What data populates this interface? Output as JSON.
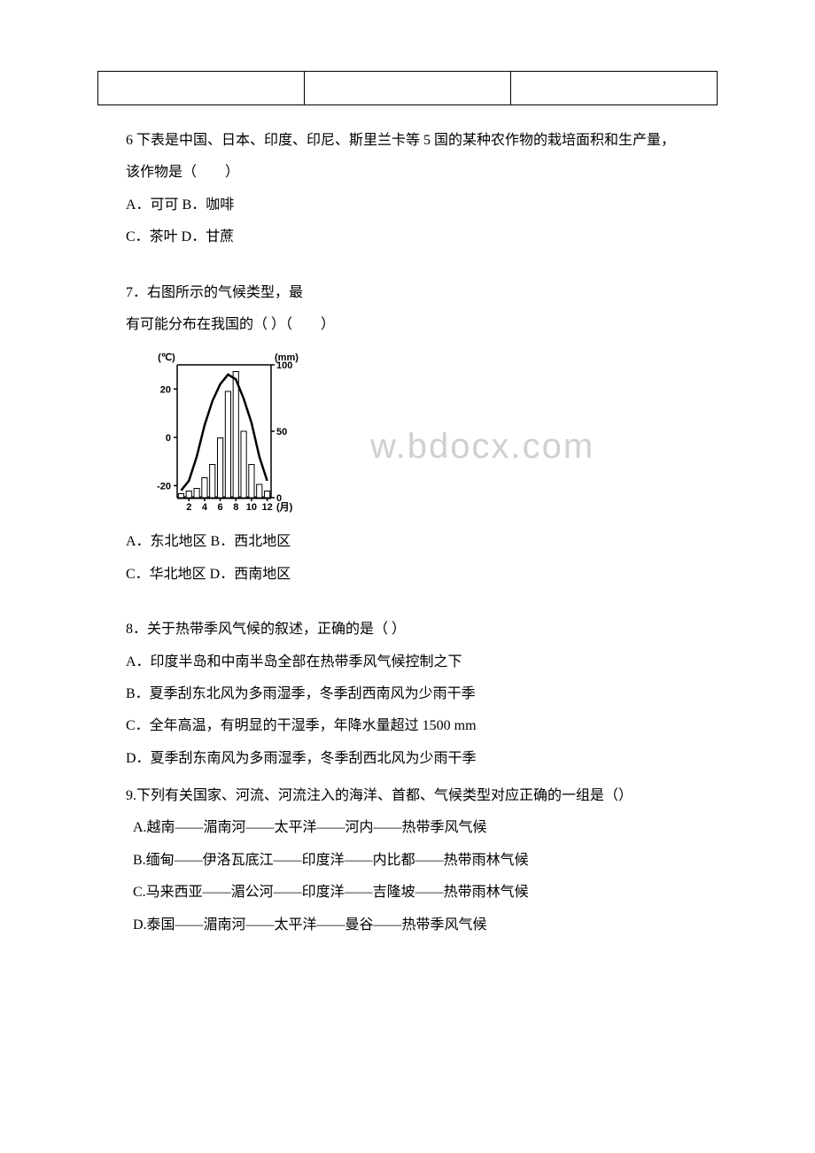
{
  "q6": {
    "intro": "6 下表是中国、日本、印度、印尼、斯里兰卡等 5 国的某种农作物的栽培面积和生产量，",
    "sub": "该作物是（　　）",
    "opt1": "A．可可 B．咖啡",
    "opt2": "C．茶叶 D．甘蔗"
  },
  "q7": {
    "line1": "7．右图所示的气候类型，最",
    "line2": "有可能分布在我国的（ ）（　　）",
    "opt1": " A．东北地区 B．西北地区",
    "opt2": "C．华北地区 D．西南地区"
  },
  "q8": {
    "stem": "8．关于热带季风气候的叙述，正确的是（ ）",
    "a": " A．印度半岛和中南半岛全部在热带季风气候控制之下",
    "b": " B．夏季刮东北风为多雨湿季，冬季刮西南风为少雨干季",
    "c": " C．全年高温，有明显的干湿季，年降水量超过 1500 mm",
    "d": " D．夏季刮东南风为多雨湿季，冬季刮西北风为少雨干季"
  },
  "q9": {
    "stem": "9.下列有关国家、河流、河流注入的海洋、首都、气候类型对应正确的一组是（）",
    "a": "A.越南——湄南河——太平洋——河内——热带季风气候",
    "b": "B.缅甸——伊洛瓦底江——印度洋——内比都——热带雨林气候",
    "c": "C.马来西亚——湄公河——印度洋——吉隆坡——热带雨林气候",
    "d": "D.泰国——湄南河——太平洋——曼谷——热带季风气候"
  },
  "chart": {
    "type": "climate-graph",
    "width": 180,
    "height": 195,
    "temp_unit": "(℃)",
    "precip_unit": "(mm)",
    "precip_paren": ")",
    "y_temp_ticks": [
      -20,
      0,
      20
    ],
    "y_precip_ticks": [
      0,
      50,
      100
    ],
    "x_ticks": [
      "2",
      "4",
      "6",
      "8",
      "10",
      "12"
    ],
    "x_label": "(月)",
    "temp_line": [
      {
        "x": 1,
        "y": -22
      },
      {
        "x": 2,
        "y": -18
      },
      {
        "x": 3,
        "y": -8
      },
      {
        "x": 4,
        "y": 5
      },
      {
        "x": 5,
        "y": 15
      },
      {
        "x": 6,
        "y": 22
      },
      {
        "x": 7,
        "y": 26
      },
      {
        "x": 8,
        "y": 24
      },
      {
        "x": 9,
        "y": 16
      },
      {
        "x": 10,
        "y": 6
      },
      {
        "x": 11,
        "y": -8
      },
      {
        "x": 12,
        "y": -18
      }
    ],
    "bars": [
      {
        "month": 1,
        "value": 3
      },
      {
        "month": 2,
        "value": 5
      },
      {
        "month": 3,
        "value": 7
      },
      {
        "month": 4,
        "value": 15
      },
      {
        "month": 5,
        "value": 25
      },
      {
        "month": 6,
        "value": 45
      },
      {
        "month": 7,
        "value": 80
      },
      {
        "month": 8,
        "value": 95
      },
      {
        "month": 9,
        "value": 50
      },
      {
        "month": 10,
        "value": 25
      },
      {
        "month": 11,
        "value": 10
      },
      {
        "month": 12,
        "value": 5
      }
    ],
    "colors": {
      "axis": "#000000",
      "line": "#000000",
      "bar_fill": "#ffffff",
      "bar_stroke": "#000000",
      "text": "#000000",
      "background": "#ffffff"
    },
    "font_size_axis": 11,
    "font_weight": "bold",
    "line_width": 2.5,
    "bar_stroke_width": 1
  },
  "watermark": "w.bdocx.com"
}
